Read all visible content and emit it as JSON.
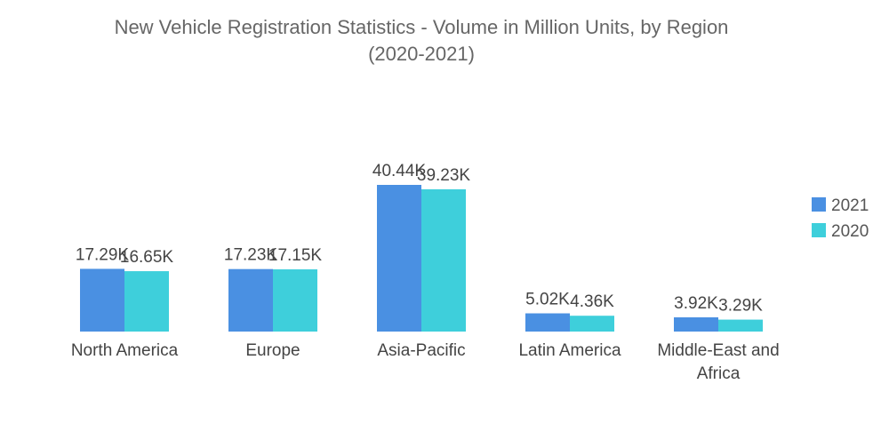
{
  "chart_data": {
    "type": "bar",
    "title": "New Vehicle Registration Statistics - Volume in Million Units, by Region",
    "subtitle": "(2020-2021)",
    "categories": [
      "North America",
      "Europe",
      "Asia-Pacific",
      "Latin America",
      "Middle-East and Africa"
    ],
    "category_lines": [
      [
        "North America"
      ],
      [
        "Europe"
      ],
      [
        "Asia-Pacific"
      ],
      [
        "Latin America"
      ],
      [
        "Middle-East and",
        "Africa"
      ]
    ],
    "series": [
      {
        "name": "2021",
        "color": "#4a90e2",
        "values": [
          17.29,
          17.23,
          40.44,
          5.02,
          3.92
        ],
        "labels": [
          "17.29K",
          "17.23K",
          "40.44K",
          "5.02K",
          "3.92K"
        ]
      },
      {
        "name": "2020",
        "color": "#3ecfdb",
        "values": [
          16.65,
          17.15,
          39.23,
          4.36,
          3.29
        ],
        "labels": [
          "16.65K",
          "17.15K",
          "39.23K",
          "4.36K",
          "3.29K"
        ]
      }
    ],
    "xlabel": "",
    "ylabel": "",
    "ylim": [
      0,
      40.44
    ],
    "grid": false,
    "legend_position": "right"
  }
}
